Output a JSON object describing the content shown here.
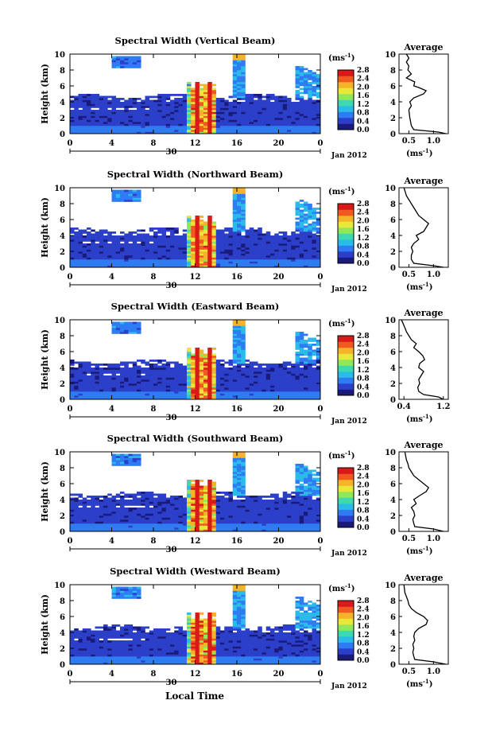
{
  "figure": {
    "xlabel": "Local Time",
    "colors": {
      "scale": [
        "#1a1a7a",
        "#2b3fc9",
        "#2f7cf2",
        "#2bbbe8",
        "#3ed9b0",
        "#8fe85a",
        "#e8e83a",
        "#f5b32a",
        "#f05a20",
        "#d91a1a"
      ],
      "ink": "#000000",
      "background": "#ffffff"
    }
  },
  "chart_data": [
    {
      "type": "heatmap",
      "title": "Spectral Width (Vertical Beam)",
      "ylabel": "Height (km)",
      "ylim": [
        0,
        10
      ],
      "y_ticks": [
        "0",
        "2",
        "4",
        "6",
        "8",
        "10"
      ],
      "xlim": [
        0,
        24
      ],
      "x_ticks": [
        "0",
        "4",
        "8",
        "12",
        "16",
        "20",
        "0"
      ],
      "date_label": "30",
      "month_label": "Jan 2012",
      "colorbar": {
        "unit": "(ms⁻¹)",
        "ticks": [
          "0.0",
          "0.4",
          "0.8",
          "1.2",
          "1.6",
          "2.0",
          "2.4",
          "2.8"
        ]
      },
      "average": {
        "title": "Average",
        "xlabel": "(ms⁻¹)",
        "x_ticks": [
          "0.5",
          "1.0"
        ],
        "xlim": [
          0.3,
          1.3
        ],
        "y_ticks": [
          "0",
          "2",
          "4",
          "6",
          "8",
          "10"
        ],
        "profile": [
          [
            1.25,
            0.0
          ],
          [
            1.1,
            0.2
          ],
          [
            0.6,
            0.5
          ],
          [
            0.55,
            1.0
          ],
          [
            0.52,
            2.0
          ],
          [
            0.5,
            3.0
          ],
          [
            0.55,
            3.5
          ],
          [
            0.52,
            4.0
          ],
          [
            0.6,
            4.5
          ],
          [
            0.8,
            5.0
          ],
          [
            0.85,
            5.4
          ],
          [
            0.7,
            5.8
          ],
          [
            0.6,
            6.0
          ],
          [
            0.62,
            6.5
          ],
          [
            0.45,
            7.0
          ],
          [
            0.55,
            7.5
          ],
          [
            0.48,
            8.0
          ],
          [
            0.5,
            8.5
          ],
          [
            0.45,
            9.0
          ],
          [
            0.5,
            9.5
          ],
          [
            0.45,
            10.0
          ]
        ]
      }
    },
    {
      "type": "heatmap",
      "title": "Spectral Width (Northward Beam)",
      "ylabel": "Height (km)",
      "ylim": [
        0,
        10
      ],
      "y_ticks": [
        "0",
        "2",
        "4",
        "6",
        "8",
        "10"
      ],
      "xlim": [
        0,
        24
      ],
      "x_ticks": [
        "0",
        "4",
        "8",
        "12",
        "16",
        "20",
        "0"
      ],
      "date_label": "30",
      "month_label": "Jan 2012",
      "colorbar": {
        "unit": "(ms⁻¹)",
        "ticks": [
          "0.0",
          "0.4",
          "0.8",
          "1.2",
          "1.6",
          "2.0",
          "2.4",
          "2.8"
        ]
      },
      "average": {
        "title": "Average",
        "xlabel": "(ms⁻¹)",
        "x_ticks": [
          "0.5",
          "1.0"
        ],
        "xlim": [
          0.3,
          1.3
        ],
        "y_ticks": [
          "0",
          "2",
          "4",
          "6",
          "8",
          "10"
        ],
        "profile": [
          [
            1.2,
            0.0
          ],
          [
            1.0,
            0.2
          ],
          [
            0.6,
            0.5
          ],
          [
            0.55,
            1.0
          ],
          [
            0.55,
            1.5
          ],
          [
            0.58,
            2.0
          ],
          [
            0.55,
            2.5
          ],
          [
            0.6,
            3.0
          ],
          [
            0.7,
            3.5
          ],
          [
            0.65,
            4.0
          ],
          [
            0.8,
            4.5
          ],
          [
            0.85,
            5.0
          ],
          [
            0.9,
            5.5
          ],
          [
            0.8,
            6.0
          ],
          [
            0.7,
            6.5
          ],
          [
            0.65,
            7.0
          ],
          [
            0.6,
            7.5
          ],
          [
            0.55,
            8.0
          ],
          [
            0.5,
            8.5
          ],
          [
            0.45,
            9.0
          ],
          [
            0.4,
            10.0
          ]
        ]
      }
    },
    {
      "type": "heatmap",
      "title": "Spectral Width (Eastward Beam)",
      "ylabel": "Height (km)",
      "ylim": [
        0,
        10
      ],
      "y_ticks": [
        "0",
        "2",
        "4",
        "6",
        "8",
        "10"
      ],
      "xlim": [
        0,
        24
      ],
      "x_ticks": [
        "0",
        "4",
        "8",
        "12",
        "16",
        "20",
        "0"
      ],
      "date_label": "30",
      "month_label": "Jan 2012",
      "colorbar": {
        "unit": "(ms⁻¹)",
        "ticks": [
          "0.0",
          "0.4",
          "0.8",
          "1.2",
          "1.6",
          "2.0",
          "2.4",
          "2.8"
        ]
      },
      "average": {
        "title": "Average",
        "xlabel": "(ms⁻¹)",
        "x_ticks": [
          "0.4",
          "1.2"
        ],
        "xlim": [
          0.3,
          1.3
        ],
        "y_ticks": [
          "0",
          "2",
          "4",
          "6",
          "8",
          "10"
        ],
        "profile": [
          [
            1.2,
            0.0
          ],
          [
            1.1,
            0.3
          ],
          [
            0.8,
            0.6
          ],
          [
            0.7,
            1.0
          ],
          [
            0.68,
            1.5
          ],
          [
            0.72,
            2.0
          ],
          [
            0.7,
            2.5
          ],
          [
            0.75,
            3.0
          ],
          [
            0.8,
            3.5
          ],
          [
            0.7,
            4.0
          ],
          [
            0.72,
            4.5
          ],
          [
            0.82,
            5.0
          ],
          [
            0.78,
            5.5
          ],
          [
            0.7,
            6.0
          ],
          [
            0.6,
            6.5
          ],
          [
            0.65,
            7.0
          ],
          [
            0.55,
            7.5
          ],
          [
            0.5,
            8.0
          ],
          [
            0.45,
            8.5
          ],
          [
            0.42,
            9.0
          ],
          [
            0.35,
            10.0
          ]
        ]
      }
    },
    {
      "type": "heatmap",
      "title": "Spectral Width (Southward Beam)",
      "ylabel": "Height (km)",
      "ylim": [
        0,
        10
      ],
      "y_ticks": [
        "0",
        "2",
        "4",
        "6",
        "8",
        "10"
      ],
      "xlim": [
        0,
        24
      ],
      "x_ticks": [
        "0",
        "4",
        "8",
        "12",
        "16",
        "20",
        "0"
      ],
      "date_label": "30",
      "month_label": "Jan 2012",
      "colorbar": {
        "unit": "(ms⁻¹)",
        "ticks": [
          "0.0",
          "0.4",
          "0.8",
          "1.2",
          "1.6",
          "2.0",
          "2.4",
          "2.8"
        ]
      },
      "average": {
        "title": "Average",
        "xlabel": "(ms⁻¹)",
        "x_ticks": [
          "0.5",
          "1.0"
        ],
        "xlim": [
          0.3,
          1.3
        ],
        "y_ticks": [
          "0",
          "2",
          "4",
          "6",
          "8",
          "10"
        ],
        "profile": [
          [
            1.2,
            0.0
          ],
          [
            1.0,
            0.3
          ],
          [
            0.62,
            0.6
          ],
          [
            0.6,
            1.0
          ],
          [
            0.58,
            1.5
          ],
          [
            0.62,
            2.0
          ],
          [
            0.6,
            2.5
          ],
          [
            0.55,
            3.0
          ],
          [
            0.65,
            3.5
          ],
          [
            0.6,
            4.0
          ],
          [
            0.72,
            4.5
          ],
          [
            0.85,
            5.0
          ],
          [
            0.9,
            5.5
          ],
          [
            0.8,
            6.0
          ],
          [
            0.7,
            6.5
          ],
          [
            0.6,
            7.0
          ],
          [
            0.55,
            7.5
          ],
          [
            0.5,
            8.0
          ],
          [
            0.48,
            8.5
          ],
          [
            0.45,
            9.0
          ],
          [
            0.42,
            10.0
          ]
        ]
      }
    },
    {
      "type": "heatmap",
      "title": "Spectral Width (Westward Beam)",
      "ylabel": "Height (km)",
      "ylim": [
        0,
        10
      ],
      "y_ticks": [
        "0",
        "2",
        "4",
        "6",
        "8",
        "10"
      ],
      "xlim": [
        0,
        24
      ],
      "x_ticks": [
        "0",
        "4",
        "8",
        "12",
        "16",
        "20",
        "0"
      ],
      "date_label": "30",
      "month_label": "Jan 2012",
      "colorbar": {
        "unit": "(ms⁻¹)",
        "ticks": [
          "0.0",
          "0.4",
          "0.8",
          "1.2",
          "1.6",
          "2.0",
          "2.4",
          "2.8"
        ]
      },
      "average": {
        "title": "Average",
        "xlabel": "(ms⁻¹)",
        "x_ticks": [
          "0.5",
          "1.0"
        ],
        "xlim": [
          0.3,
          1.3
        ],
        "y_ticks": [
          "0",
          "2",
          "4",
          "6",
          "8",
          "10"
        ],
        "profile": [
          [
            1.25,
            0.0
          ],
          [
            1.0,
            0.3
          ],
          [
            0.62,
            0.6
          ],
          [
            0.6,
            1.0
          ],
          [
            0.58,
            1.5
          ],
          [
            0.6,
            2.0
          ],
          [
            0.58,
            2.5
          ],
          [
            0.62,
            3.0
          ],
          [
            0.6,
            3.5
          ],
          [
            0.62,
            4.0
          ],
          [
            0.7,
            4.5
          ],
          [
            0.85,
            5.0
          ],
          [
            0.88,
            5.5
          ],
          [
            0.8,
            6.0
          ],
          [
            0.65,
            6.5
          ],
          [
            0.55,
            7.0
          ],
          [
            0.5,
            7.5
          ],
          [
            0.48,
            8.0
          ],
          [
            0.45,
            8.5
          ],
          [
            0.42,
            9.0
          ],
          [
            0.4,
            10.0
          ]
        ]
      }
    }
  ]
}
